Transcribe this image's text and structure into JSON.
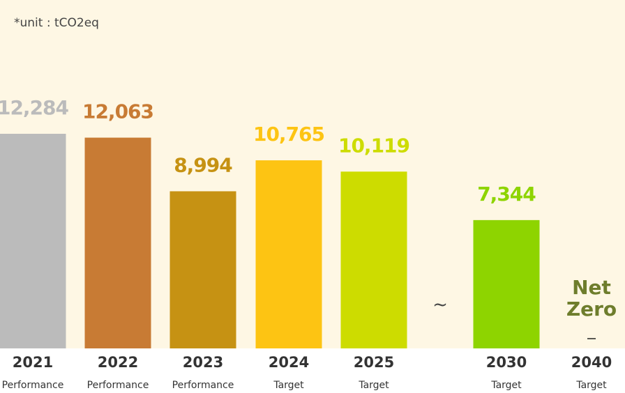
{
  "chart_data": {
    "type": "bar",
    "note": "*unit : tCO2eq",
    "categories": [
      "2021",
      "2022",
      "2023",
      "2024",
      "2025",
      "2030",
      "2040"
    ],
    "sublabels": [
      "Performance",
      "Performance",
      "Performance",
      "Target",
      "Target",
      "Target",
      "Target"
    ],
    "values": [
      12284,
      12063,
      8994,
      10765,
      10119,
      7344,
      0
    ],
    "value_labels": [
      "12,284",
      "12,063",
      "8,994",
      "10,765",
      "10,119",
      "7,344",
      "Net Zero"
    ],
    "colors": [
      "#bbbbbb",
      "#c87b34",
      "#c69213",
      "#fdc413",
      "#cddc00",
      "#8ed400",
      "#6e7d2c"
    ],
    "axis_break": "~",
    "ylim": [
      0,
      12284
    ]
  }
}
